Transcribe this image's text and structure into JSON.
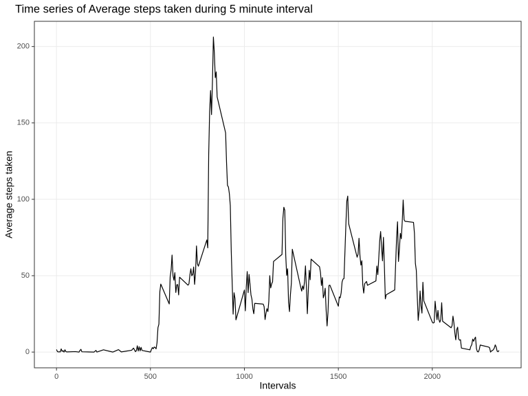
{
  "chart_data": {
    "type": "line",
    "title": "Time series of Average steps taken during 5 minute interval",
    "x_label": "Intervals",
    "y_label": "Average steps taken",
    "x": [
      0,
      5,
      10,
      15,
      20,
      25,
      30,
      35,
      40,
      45,
      50,
      55,
      100,
      120,
      125,
      130,
      135,
      200,
      210,
      215,
      250,
      300,
      330,
      345,
      400,
      410,
      420,
      425,
      430,
      435,
      440,
      445,
      450,
      455,
      500,
      505,
      510,
      515,
      520,
      525,
      530,
      535,
      540,
      545,
      550,
      555,
      600,
      605,
      610,
      615,
      620,
      625,
      630,
      635,
      640,
      645,
      650,
      655,
      700,
      705,
      710,
      715,
      720,
      725,
      730,
      735,
      740,
      745,
      750,
      755,
      800,
      805,
      810,
      815,
      820,
      825,
      830,
      835,
      840,
      845,
      850,
      855,
      900,
      905,
      910,
      915,
      920,
      925,
      930,
      935,
      940,
      945,
      950,
      955,
      1000,
      1005,
      1010,
      1015,
      1020,
      1025,
      1030,
      1035,
      1040,
      1045,
      1050,
      1055,
      1100,
      1105,
      1110,
      1115,
      1120,
      1125,
      1130,
      1135,
      1140,
      1145,
      1150,
      1155,
      1200,
      1205,
      1210,
      1215,
      1220,
      1225,
      1230,
      1235,
      1240,
      1245,
      1250,
      1255,
      1300,
      1305,
      1310,
      1315,
      1320,
      1325,
      1330,
      1335,
      1340,
      1345,
      1350,
      1355,
      1400,
      1405,
      1410,
      1415,
      1420,
      1425,
      1430,
      1435,
      1440,
      1445,
      1450,
      1455,
      1500,
      1505,
      1510,
      1515,
      1520,
      1525,
      1530,
      1535,
      1540,
      1545,
      1550,
      1555,
      1600,
      1605,
      1610,
      1615,
      1620,
      1625,
      1630,
      1635,
      1640,
      1645,
      1650,
      1655,
      1700,
      1705,
      1710,
      1715,
      1720,
      1725,
      1730,
      1735,
      1740,
      1745,
      1750,
      1755,
      1800,
      1805,
      1810,
      1815,
      1820,
      1825,
      1830,
      1835,
      1840,
      1845,
      1850,
      1855,
      1900,
      1905,
      1910,
      1915,
      1920,
      1925,
      1930,
      1935,
      1940,
      1945,
      1950,
      1955,
      2000,
      2005,
      2010,
      2015,
      2020,
      2025,
      2030,
      2035,
      2040,
      2045,
      2050,
      2055,
      2100,
      2105,
      2110,
      2115,
      2120,
      2125,
      2130,
      2135,
      2140,
      2145,
      2150,
      2155,
      2200,
      2205,
      2210,
      2215,
      2220,
      2225,
      2230,
      2235,
      2240,
      2245,
      2250,
      2255,
      2300,
      2305,
      2310,
      2315,
      2320,
      2325,
      2330,
      2335,
      2340,
      2345,
      2350,
      2355
    ],
    "series": [
      {
        "name": "Average steps",
        "color": "#000000",
        "values": [
          1.7,
          0.3,
          0.1,
          0.2,
          0.1,
          2.1,
          0.5,
          0.9,
          0,
          1.5,
          0.3,
          0.1,
          0.3,
          0,
          1.1,
          1.8,
          0.2,
          0,
          1.1,
          0,
          1.5,
          0,
          1.6,
          0.1,
          1.2,
          2.6,
          0.3,
          0.9,
          4.1,
          0.7,
          3.5,
          0.8,
          3.1,
          1.1,
          0,
          1.6,
          3,
          2.2,
          3.3,
          3,
          2.1,
          6.1,
          16,
          18.3,
          39.5,
          44.5,
          31.5,
          49.3,
          53.8,
          63.5,
          50,
          47,
          52,
          39,
          44,
          44.2,
          37.4,
          49,
          43.8,
          44.7,
          50.5,
          54.5,
          49.9,
          50.9,
          55.7,
          44.3,
          52.3,
          69.5,
          57.8,
          56.2,
          73.4,
          68.2,
          129.4,
          157.5,
          171.2,
          155.4,
          177.3,
          206.2,
          195.9,
          179.6,
          183.4,
          167,
          143.5,
          124,
          109.1,
          108.1,
          103.7,
          95.9,
          66.2,
          45.2,
          24.8,
          38.8,
          35,
          21.1,
          40.6,
          27,
          42.4,
          52.7,
          38.9,
          50.8,
          44.3,
          37.4,
          34.7,
          28.3,
          25.1,
          31.9,
          31.4,
          29.7,
          21.3,
          25.5,
          28.4,
          26.5,
          33.4,
          50,
          42,
          44.6,
          46,
          59.3,
          63.9,
          87.7,
          94.8,
          92.8,
          63.4,
          50.2,
          54.5,
          32.4,
          26.5,
          37.7,
          45,
          67.3,
          42.3,
          39.9,
          43.3,
          41,
          46.2,
          56.4,
          42.8,
          25.1,
          40,
          53.5,
          47.3,
          60.8,
          55.8,
          52,
          43.6,
          48.7,
          35.5,
          37.5,
          41.8,
          27.5,
          17.1,
          26.1,
          43.6,
          43.8,
          30,
          36.1,
          35.5,
          38.8,
          46,
          47.8,
          48.1,
          65.3,
          82.9,
          98.7,
          102.1,
          84,
          62.1,
          64.1,
          74.5,
          63.2,
          56.9,
          59.8,
          43.9,
          38.6,
          44.7,
          45.5,
          46.2,
          43.7,
          46.6,
          56.3,
          50.7,
          61.2,
          72.7,
          78.9,
          68.9,
          59.7,
          75.1,
          56.5,
          34.8,
          37.5,
          40.7,
          58,
          74.7,
          85.3,
          59.3,
          67.8,
          77.7,
          74.2,
          85.3,
          99.5,
          86.6,
          85.6,
          84.9,
          77.8,
          58,
          53.4,
          36.3,
          20.7,
          27.4,
          40,
          30.2,
          25.5,
          45.7,
          33.5,
          19.6,
          19,
          19.3,
          33.3,
          26.8,
          21.2,
          27.3,
          21.3,
          19.5,
          21.3,
          32.3,
          20.2,
          15.9,
          17.2,
          23.5,
          19.2,
          12.5,
          8,
          14.7,
          16.3,
          8.7,
          7.8,
          8.1,
          2.6,
          1.5,
          3.7,
          4.8,
          8.5,
          7.1,
          8.7,
          9.8,
          2.2,
          0.3,
          0.1,
          1.6,
          4.6,
          3.3,
          2.8,
          0,
          0.8,
          1,
          1.6,
          2.6,
          4.7,
          3.3,
          0.6,
          0.2,
          1.1
        ]
      }
    ],
    "xlim": [
      -117.75,
      2472.75
    ],
    "ylim": [
      -10.3,
      216.5
    ],
    "xticks": [
      0,
      500,
      1000,
      1500,
      2000
    ],
    "yticks": [
      0,
      50,
      100,
      150,
      200
    ],
    "grid": true
  }
}
